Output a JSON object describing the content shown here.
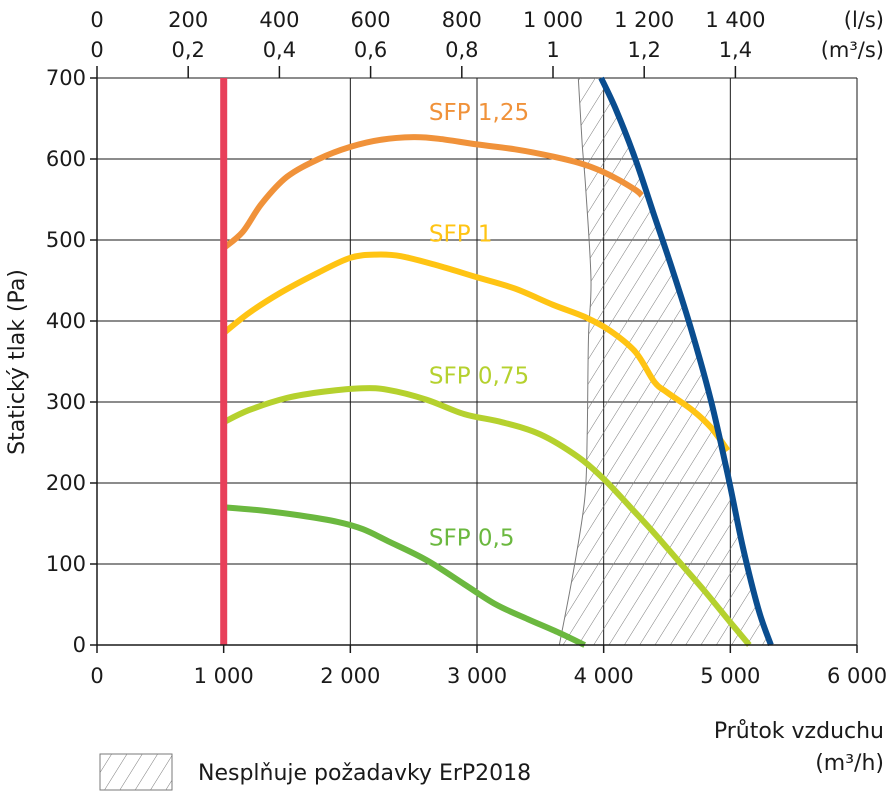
{
  "chart_data": {
    "type": "line",
    "xlabel": "Průtok vzduchu",
    "xlabel_unit": "(m³/h)",
    "ylabel": "Statický tlak (Pa)",
    "xlim": [
      0,
      6000
    ],
    "ylim": [
      0,
      700
    ],
    "x_ticks": [
      0,
      1000,
      2000,
      3000,
      4000,
      5000,
      6000
    ],
    "x_tick_labels": [
      "0",
      "1 000",
      "2 000",
      "3 000",
      "4 000",
      "5 000",
      "6 000"
    ],
    "y_ticks": [
      0,
      100,
      200,
      300,
      400,
      500,
      600,
      700
    ],
    "y_tick_labels": [
      "0",
      "100",
      "200",
      "300",
      "400",
      "500",
      "600",
      "700"
    ],
    "grid": true,
    "top_axes": [
      {
        "unit": "(l/s)",
        "ticks": [
          0,
          200,
          400,
          600,
          800,
          1000,
          1200,
          1400
        ],
        "tick_labels": [
          "0",
          "200",
          "400",
          "600",
          "800",
          "1 000",
          "1 200",
          "1 400"
        ],
        "factor_m3h": 3.6
      },
      {
        "unit": "(m³/s)",
        "ticks": [
          0,
          0.2,
          0.4,
          0.6,
          0.8,
          1.0,
          1.2,
          1.4
        ],
        "tick_labels": [
          "0",
          "0,2",
          "0,4",
          "0,6",
          "0,8",
          "1",
          "1,2",
          "1,4"
        ],
        "factor_m3h": 3600
      }
    ],
    "series": [
      {
        "name": "SFP 1,25",
        "color": "#F0923A",
        "x": [
          1000,
          1150,
          1300,
          1500,
          1750,
          2000,
          2250,
          2500,
          2700,
          3000,
          3300,
          3600,
          3850,
          4050,
          4250,
          4300
        ],
        "y": [
          490,
          510,
          545,
          578,
          600,
          615,
          624,
          627,
          625,
          618,
          612,
          603,
          593,
          580,
          562,
          555
        ]
      },
      {
        "name": "SFP 1",
        "color": "#FFC413",
        "x": [
          1000,
          1200,
          1450,
          1750,
          2000,
          2200,
          2400,
          2700,
          3000,
          3300,
          3600,
          3850,
          4050,
          4250,
          4400,
          4500,
          4700,
          4850,
          4980
        ],
        "y": [
          385,
          410,
          435,
          460,
          478,
          482,
          480,
          468,
          454,
          440,
          420,
          405,
          388,
          362,
          325,
          312,
          290,
          268,
          240
        ]
      },
      {
        "name": "SFP 0,75",
        "color": "#B5D12E",
        "x": [
          1000,
          1200,
          1500,
          1800,
          2100,
          2300,
          2600,
          2900,
          3200,
          3500,
          3800,
          4000,
          4200,
          4400,
          4600,
          4800,
          5000,
          5150
        ],
        "y": [
          275,
          290,
          305,
          313,
          317,
          315,
          303,
          285,
          275,
          260,
          232,
          205,
          172,
          138,
          102,
          66,
          28,
          0
        ]
      },
      {
        "name": "SFP 0,5",
        "color": "#6BB83F",
        "x": [
          1000,
          1300,
          1600,
          1900,
          2100,
          2300,
          2600,
          2900,
          3150,
          3400,
          3650,
          3850
        ],
        "y": [
          170,
          166,
          160,
          152,
          143,
          128,
          105,
          75,
          50,
          32,
          15,
          0
        ]
      },
      {
        "name": "",
        "color": "#E8405A",
        "x": [
          1000,
          1000
        ],
        "y": [
          0,
          700
        ]
      },
      {
        "name": "",
        "color": "#0A4D8F",
        "x": [
          3980,
          4100,
          4250,
          4400,
          4550,
          4700,
          4850,
          4980,
          5100,
          5220,
          5320
        ],
        "y": [
          700,
          660,
          600,
          530,
          460,
          385,
          300,
          210,
          120,
          45,
          0
        ]
      }
    ],
    "hatched_region": {
      "label": "Nesplňuje požadavky ErP2018",
      "left_boundary": {
        "x": [
          3800,
          3830,
          3860,
          3900,
          3880,
          3870,
          3850,
          3760,
          3650
        ],
        "y": [
          700,
          620,
          560,
          450,
          380,
          260,
          180,
          90,
          0
        ]
      },
      "right_boundary": {
        "x": [
          3980,
          4100,
          4250,
          4400,
          4550,
          4700,
          4850,
          4980,
          5100,
          5220,
          5320
        ],
        "y": [
          700,
          660,
          600,
          530,
          460,
          385,
          300,
          210,
          120,
          45,
          0
        ]
      }
    },
    "annotations": [
      {
        "text": "SFP 1,25",
        "color": "#F0923A",
        "x": 2620,
        "y": 648
      },
      {
        "text": "SFP 1",
        "color": "#FFC413",
        "x": 2620,
        "y": 498
      },
      {
        "text": "SFP 0,75",
        "color": "#B5D12E",
        "x": 2620,
        "y": 323
      },
      {
        "text": "SFP 0,5",
        "color": "#6BB83F",
        "x": 2620,
        "y": 123
      }
    ],
    "legend": {
      "placement": "bottom-left",
      "entries": [
        "Nesplňuje požadavky ErP2018"
      ]
    }
  }
}
